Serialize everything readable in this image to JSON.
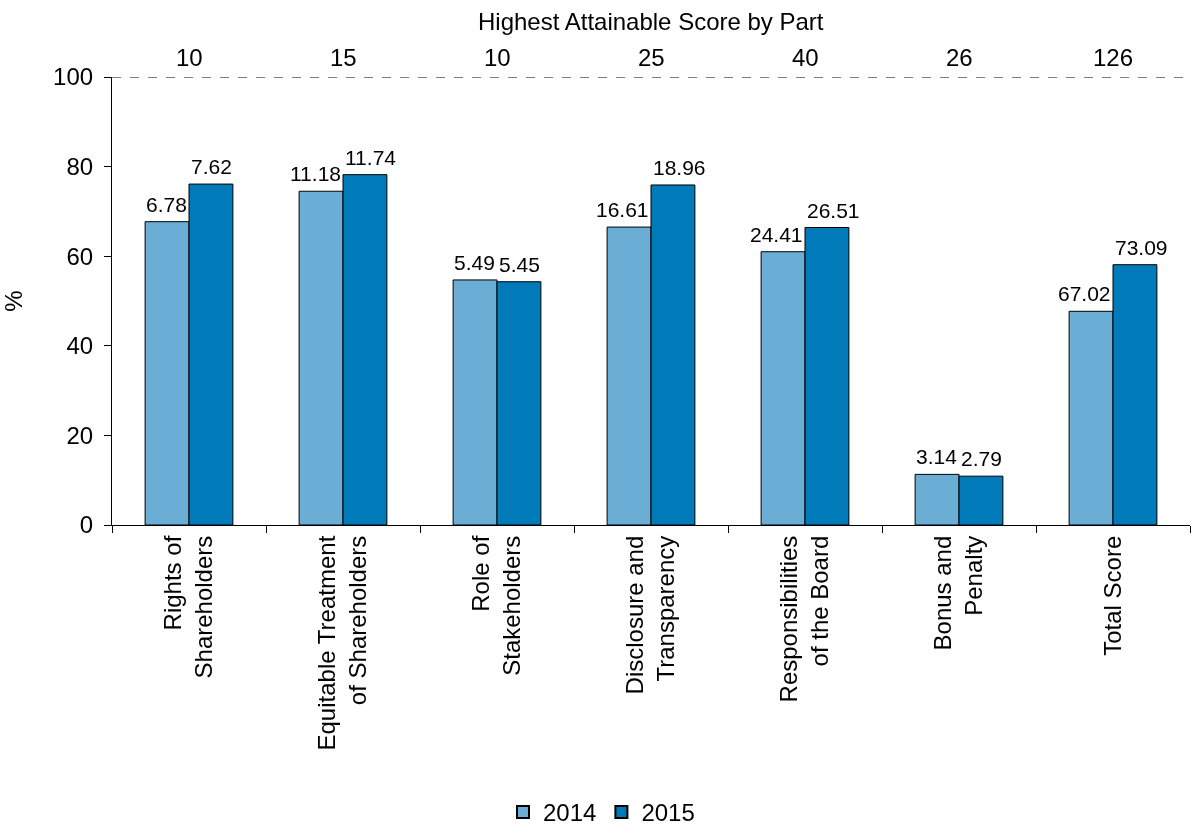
{
  "chart_data": {
    "type": "bar",
    "categories": [
      "Rights of Shareholders",
      "Equitable Treatment of Shareholders",
      "Role of Stakeholders",
      "Disclosure and Transparency",
      "Responsibilities of the Board",
      "Bonus and Penalty",
      "Total Score"
    ],
    "series": [
      {
        "name": "2014",
        "color": "#6aaed6",
        "values": [
          67.7,
          74.5,
          54.7,
          66.5,
          61.0,
          11.3,
          47.7
        ]
      },
      {
        "name": "2015",
        "color": "#007ab8",
        "values": [
          76.1,
          78.2,
          54.3,
          75.9,
          66.4,
          10.9,
          58.1
        ]
      }
    ],
    "ylabel": "%",
    "ylim": [
      0,
      100
    ],
    "yticks": [
      0,
      20,
      40,
      60,
      80,
      100
    ],
    "x2label": "Highest Attainable Score by Part",
    "annotations": [
      "10",
      "15",
      "10",
      "25",
      "40",
      "26",
      "126",
      {
        "text": "6.78",
        "x": "Rights of Shareholders",
        "y": 67.7
      },
      {
        "text": "11.18",
        "x": "Equitable Treatment of Shareholders",
        "y": 74.5
      },
      {
        "text": "5.49",
        "x": "Role of Stakeholders",
        "y": 54.7
      },
      {
        "text": "16.61",
        "x": "Disclosure and Transparency",
        "y": 66.5
      },
      {
        "text": "24.41",
        "x": "Responsibilities of the Board",
        "y": 61.0
      },
      {
        "text": "3.14",
        "x": "Bonus and Penalty",
        "y": 11.3
      },
      {
        "text": "67.02",
        "x": "Total Score",
        "y": 47.7
      },
      {
        "text": "7.62",
        "x": "Rights of Shareholders",
        "y": 76.1
      },
      {
        "text": "11.74",
        "x": "Equitable Treatment of Shareholders",
        "y": 78.2
      },
      {
        "text": "5.45",
        "x": "Role of Stakeholders",
        "y": 54.3
      },
      {
        "text": "18.96",
        "x": "Disclosure and Transparency",
        "y": 75.9
      },
      {
        "text": "26.51",
        "x": "Responsibilities of the Board",
        "y": 66.4
      },
      {
        "text": "2.79",
        "x": "Bonus and Penalty",
        "y": 10.9
      },
      {
        "text": "73.09",
        "x": "Total Score",
        "y": 58.1
      }
    ],
    "ref_lines": [
      {
        "axis": "y",
        "value": 100,
        "color": "#000000",
        "line_style": "dashed"
      }
    ],
    "legend": "bottom",
    "grid": false
  }
}
